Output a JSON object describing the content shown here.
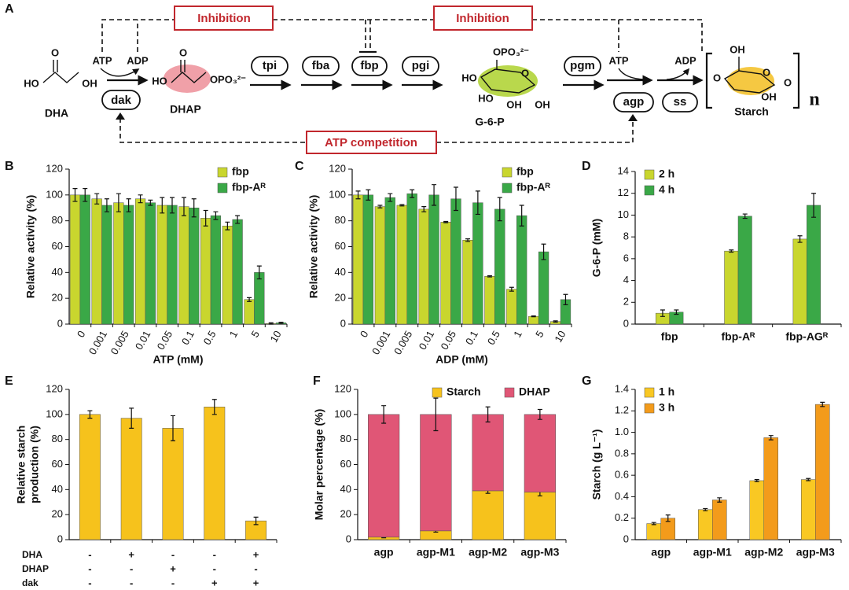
{
  "pathway": {
    "label": "A",
    "inhibition_left": "Inhibition",
    "inhibition_right": "Inhibition",
    "competition": "ATP competition",
    "atp_left": "ATP",
    "adp_left": "ADP",
    "atp_right": "ATP",
    "adp_right": "ADP",
    "enzymes": [
      "dak",
      "tpi",
      "fba",
      "fbp",
      "pgi",
      "pgm",
      "agp",
      "ss"
    ],
    "dha": {
      "name": "DHA",
      "ho": "HO",
      "o": "O",
      "oh": "OH"
    },
    "dhap": {
      "name": "DHAP",
      "ho": "HO",
      "o": "O",
      "phosphate": "OPO₃²⁻"
    },
    "g6p": {
      "name": "G-6-P",
      "phosphate": "OPO₃²⁻",
      "ho_1": "HO",
      "ho_2": "HO",
      "oh_1": "OH",
      "oh_2": "OH",
      "o": "O"
    },
    "starch": {
      "name": "Starch",
      "oh_1": "OH",
      "oh_2": "OH",
      "o_1": "O",
      "o_2": "O",
      "o_3": "O",
      "n": "n"
    }
  },
  "chart_data": [
    {
      "type": "bar",
      "label": "B",
      "xlabel": "ATP (mM)",
      "ylabel": "Relative activity (%)",
      "categories": [
        "0",
        "0.001",
        "0.005",
        "0.01",
        "0.05",
        "0.1",
        "0.5",
        "1",
        "5",
        "10"
      ],
      "ylim": [
        0,
        120
      ],
      "yticks": [
        0,
        20,
        40,
        60,
        80,
        100,
        120
      ],
      "legend": "upper right",
      "series": [
        {
          "name": "fbp",
          "color": "#c9d62e",
          "values": [
            100,
            97,
            94,
            97,
            92,
            91,
            82,
            76,
            19,
            0.5
          ],
          "errors": [
            5,
            4,
            7,
            3,
            6,
            7,
            6,
            3,
            1.5,
            0.5
          ]
        },
        {
          "name": "fbp-Aᴿ",
          "color": "#3aa847",
          "values": [
            100,
            92,
            92,
            94,
            92,
            90,
            84,
            81,
            40,
            1
          ],
          "errors": [
            5,
            5,
            5,
            2,
            6,
            7,
            3,
            3,
            5,
            0.5
          ]
        }
      ]
    },
    {
      "type": "bar",
      "label": "C",
      "xlabel": "ADP (mM)",
      "ylabel": "Relative activity (%)",
      "categories": [
        "0",
        "0.001",
        "0.005",
        "0.01",
        "0.05",
        "0.1",
        "0.5",
        "1",
        "5",
        "10"
      ],
      "ylim": [
        0,
        120
      ],
      "yticks": [
        0,
        20,
        40,
        60,
        80,
        100,
        120
      ],
      "legend": "upper right",
      "series": [
        {
          "name": "fbp",
          "color": "#c9d62e",
          "values": [
            100,
            91,
            92,
            89,
            79,
            65,
            37,
            27,
            6,
            2
          ],
          "errors": [
            3,
            1,
            0.5,
            2,
            0.5,
            1,
            0.5,
            1.5,
            0.3,
            0.5
          ]
        },
        {
          "name": "fbp-Aᴿ",
          "color": "#3aa847",
          "values": [
            100,
            98,
            101,
            100,
            97,
            94,
            89,
            84,
            56,
            19
          ],
          "errors": [
            4,
            3,
            3,
            8,
            9,
            9,
            9,
            8,
            6,
            4
          ]
        }
      ]
    },
    {
      "type": "bar",
      "label": "D",
      "ylabel": "G-6-P (mM)",
      "categories": [
        "fbp",
        "fbp-Aᴿ",
        "fbp-AGᴿ"
      ],
      "ylim": [
        0,
        14
      ],
      "yticks": [
        0,
        2,
        4,
        6,
        8,
        10,
        12,
        14
      ],
      "legend": "upper left",
      "series": [
        {
          "name": "2 h",
          "color": "#c9d62e",
          "values": [
            1.0,
            6.7,
            7.8
          ],
          "errors": [
            0.3,
            0.1,
            0.3
          ]
        },
        {
          "name": "4 h",
          "color": "#3aa847",
          "values": [
            1.1,
            9.9,
            10.9
          ],
          "errors": [
            0.2,
            0.2,
            1.1
          ]
        }
      ]
    },
    {
      "type": "bar",
      "label": "E",
      "ylabel": [
        "Relative starch",
        "production (%)"
      ],
      "categories": [
        null,
        null,
        null,
        null,
        null
      ],
      "ylim": [
        0,
        120
      ],
      "yticks": [
        0,
        20,
        40,
        60,
        80,
        100,
        120
      ],
      "series": [
        {
          "color": "#f6c21c",
          "values": [
            100,
            97,
            89,
            106,
            15
          ],
          "errors": [
            3,
            8,
            10,
            6,
            3
          ]
        }
      ],
      "conditions": [
        {
          "name": "DHA",
          "marks": [
            "-",
            "+",
            "-",
            "-",
            "+"
          ]
        },
        {
          "name": "DHAP",
          "marks": [
            "-",
            "-",
            "+",
            "-",
            "-"
          ]
        },
        {
          "name": "dak",
          "marks": [
            "-",
            "-",
            "-",
            "+",
            "+"
          ]
        }
      ]
    },
    {
      "type": "stacked_bar",
      "label": "F",
      "ylabel": "Molar percentage (%)",
      "categories": [
        "agp",
        "agp-M1",
        "agp-M2",
        "agp-M3"
      ],
      "ylim": [
        0,
        120
      ],
      "yticks": [
        0,
        20,
        40,
        60,
        80,
        100,
        120
      ],
      "legend": "upper right",
      "series": [
        {
          "name": "Starch",
          "color": "#f6c21c",
          "values": [
            2,
            7,
            39,
            38
          ],
          "errors": [
            0.5,
            1,
            2,
            3
          ]
        },
        {
          "name": "DHAP",
          "color": "#e05676",
          "values": [
            98,
            93,
            61,
            62
          ],
          "errors": [
            7,
            13,
            6,
            4
          ]
        }
      ]
    },
    {
      "type": "bar",
      "label": "G",
      "ylabel": "Starch (g L⁻¹)",
      "categories": [
        "agp",
        "agp-M1",
        "agp-M2",
        "agp-M3"
      ],
      "ylim": [
        0,
        1.4
      ],
      "yticks": [
        0,
        0.2,
        0.4,
        0.6,
        0.8,
        {
          "value": 1,
          "label": "1.0"
        },
        1.2,
        1.4
      ],
      "legend": "upper left",
      "series": [
        {
          "name": "1 h",
          "color": "#f9c823",
          "values": [
            0.15,
            0.28,
            0.55,
            0.56
          ],
          "errors": [
            0.01,
            0.01,
            0.01,
            0.01
          ]
        },
        {
          "name": "3 h",
          "color": "#f39b1b",
          "values": [
            0.2,
            0.37,
            0.95,
            1.26
          ],
          "errors": [
            0.03,
            0.02,
            0.02,
            0.02
          ]
        }
      ]
    }
  ]
}
